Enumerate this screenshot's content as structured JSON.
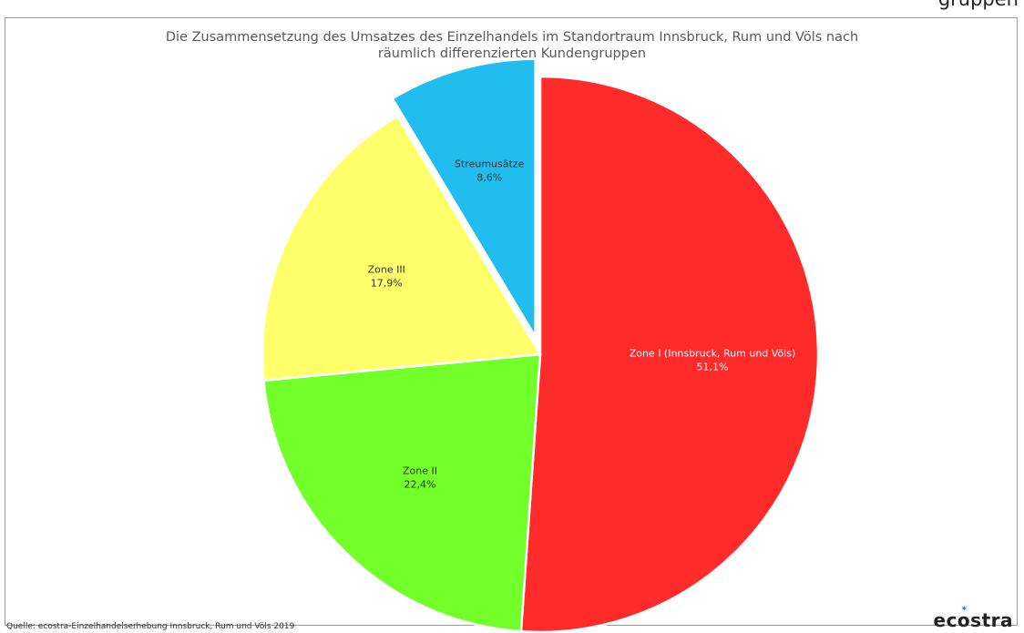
{
  "header_fragment": "gruppen",
  "chart_data": {
    "type": "pie",
    "title_lines": [
      "Die Zusammensetzung des Umsatzes des Einzelhandels im Standortraum Innsbruck, Rum und Völs nach",
      "räumlich differenzierten Kundengruppen"
    ],
    "slices": [
      {
        "label": "Zone I (Innsbruck, Rum und Völs)",
        "percent_text": "51,1%",
        "value": 51.1,
        "color": "#ff2a2a",
        "label_color": "#ffffff",
        "exploded": false
      },
      {
        "label": "Zone II",
        "percent_text": "22,4%",
        "value": 22.4,
        "color": "#73ff2a",
        "label_color": "#333333",
        "exploded": false
      },
      {
        "label": "Zone III",
        "percent_text": "17,9%",
        "value": 17.9,
        "color": "#ffff6a",
        "label_color": "#333333",
        "exploded": false
      },
      {
        "label": "Streumusätze",
        "percent_text": "8,6%",
        "value": 8.6,
        "color": "#22bdef",
        "label_color": "#333333",
        "exploded": true
      }
    ],
    "start": "12 o'clock",
    "direction": "clockwise"
  },
  "source": "Quelle: ecostra-Einzelhandelserhebung Innsbruck, Rum und Völs 2019",
  "brand": "ecostra"
}
